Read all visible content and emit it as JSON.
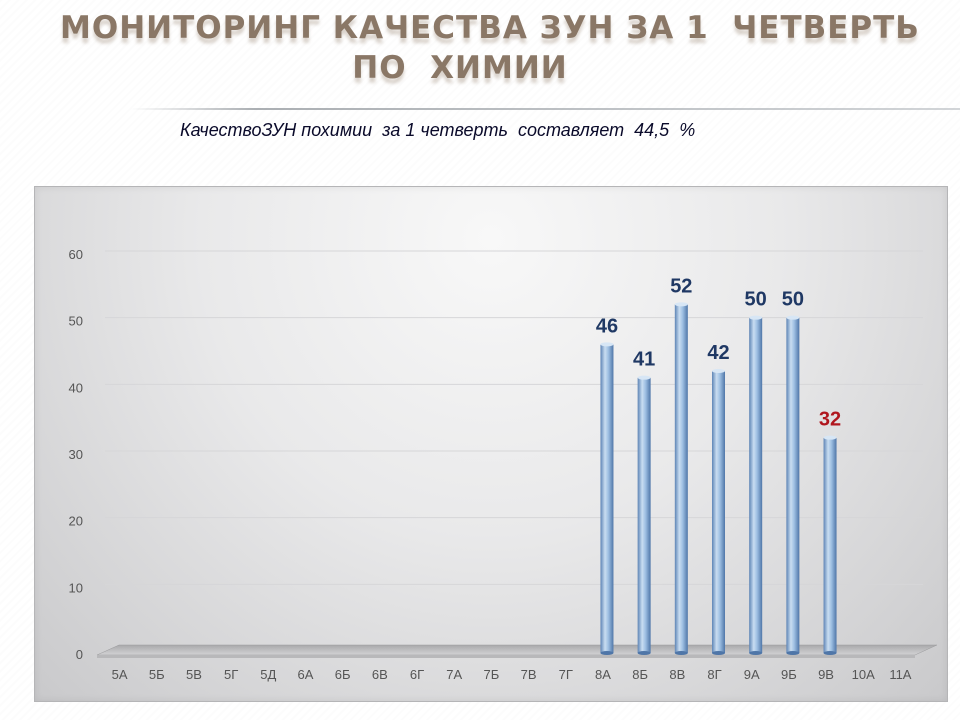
{
  "slide": {
    "title_line1": "МОНИТОРИНГ КАЧЕСТВА ЗУН ЗА 1  ЧЕТВЕРТЬ",
    "title_line2": "ПО  ХИМИИ",
    "subtitle": "КачествоЗУН похимии  за 1 четверть  составляет  44,5  %"
  },
  "chart_data": {
    "type": "bar",
    "categories": [
      "5А",
      "5Б",
      "5В",
      "5Г",
      "5Д",
      "6А",
      "6Б",
      "6В",
      "6Г",
      "7А",
      "7Б",
      "7В",
      "7Г",
      "8А",
      "8Б",
      "8В",
      "8Г",
      "9А",
      "9Б",
      "9В",
      "10А",
      "11А"
    ],
    "values": [
      null,
      null,
      null,
      null,
      null,
      null,
      null,
      null,
      null,
      null,
      null,
      null,
      null,
      46,
      41,
      52,
      42,
      50,
      50,
      32,
      null,
      null
    ],
    "data_labels": [
      "",
      "",
      "",
      "",
      "",
      "",
      "",
      "",
      "",
      "",
      "",
      "",
      "",
      "46",
      "41",
      "52",
      "42",
      "50",
      "50",
      "32",
      "",
      ""
    ],
    "ylim": [
      0,
      60
    ],
    "yticks": [
      0,
      10,
      20,
      30,
      40,
      50,
      60
    ],
    "grid": true,
    "legend": "none",
    "colors": {
      "bar": "#8fb4dc",
      "label": "#1f3864",
      "label_highlight": "#b0161e",
      "axis_text": "#555555",
      "grid": "#d6d6d8"
    },
    "highlight_index": 19
  }
}
